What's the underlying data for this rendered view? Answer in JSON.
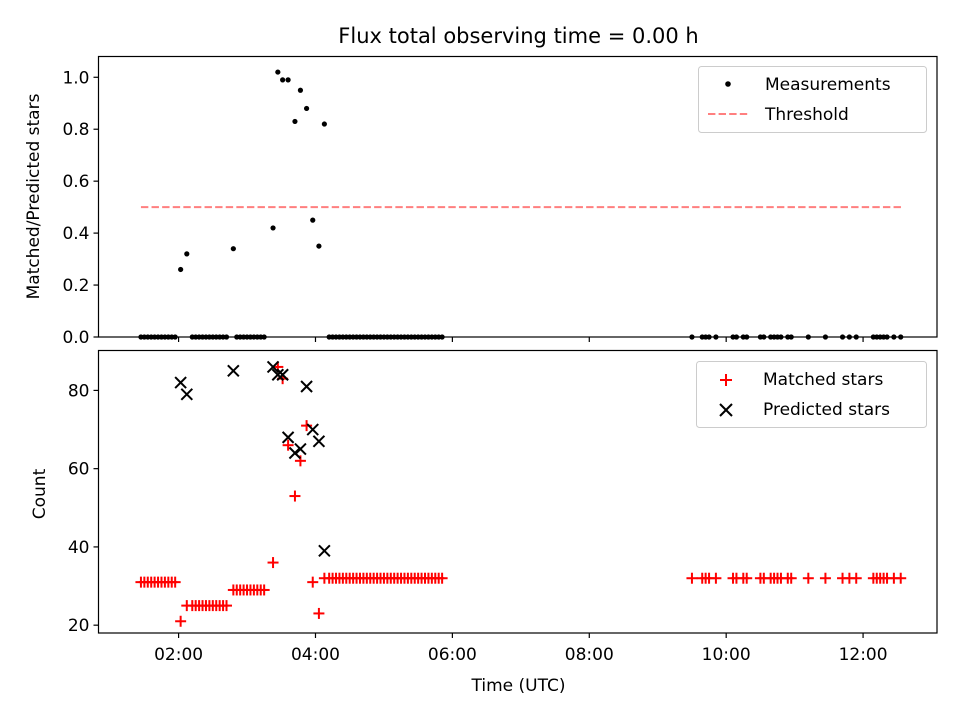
{
  "chart_data": {
    "type": "scatter",
    "title": "Flux total observing time = 0.00 h",
    "xlabel": "Time (UTC)",
    "x_unit": "hours UTC",
    "xlim": [
      0.83,
      13.08
    ],
    "x_ticks": [
      {
        "v": 2,
        "label": "02:00"
      },
      {
        "v": 4,
        "label": "04:00"
      },
      {
        "v": 6,
        "label": "06:00"
      },
      {
        "v": 8,
        "label": "08:00"
      },
      {
        "v": 10,
        "label": "10:00"
      },
      {
        "v": 12,
        "label": "12:00"
      }
    ],
    "panels": [
      {
        "ylabel": "Matched/Predicted stars",
        "ylim": [
          0,
          1.08
        ],
        "y_ticks": [
          {
            "v": 0,
            "label": "0.0"
          },
          {
            "v": 0.2,
            "label": "0.2"
          },
          {
            "v": 0.4,
            "label": "0.4"
          },
          {
            "v": 0.6,
            "label": "0.6"
          },
          {
            "v": 0.8,
            "label": "0.8"
          },
          {
            "v": 1.0,
            "label": "1.0"
          }
        ],
        "legend_position": "top-right",
        "series": [
          {
            "name": "Measurements",
            "kind": "dot",
            "color": "#000000",
            "x": [
              1.45,
              1.5,
              1.55,
              1.6,
              1.65,
              1.7,
              1.75,
              1.8,
              1.85,
              1.9,
              1.95,
              2.03,
              2.12,
              2.2,
              2.25,
              2.3,
              2.35,
              2.4,
              2.45,
              2.5,
              2.55,
              2.6,
              2.65,
              2.7,
              2.8,
              2.85,
              2.9,
              2.95,
              3.0,
              3.05,
              3.1,
              3.15,
              3.2,
              3.25,
              3.38,
              3.45,
              3.52,
              3.6,
              3.7,
              3.78,
              3.87,
              3.96,
              4.05,
              4.13,
              4.2,
              4.25,
              4.3,
              4.35,
              4.4,
              4.45,
              4.5,
              4.55,
              4.6,
              4.65,
              4.7,
              4.75,
              4.8,
              4.85,
              4.9,
              4.95,
              5.0,
              5.05,
              5.1,
              5.15,
              5.2,
              5.25,
              5.3,
              5.35,
              5.4,
              5.45,
              5.5,
              5.55,
              5.6,
              5.65,
              5.7,
              5.75,
              5.8,
              5.85,
              9.5,
              9.65,
              9.7,
              9.75,
              9.85,
              10.1,
              10.15,
              10.25,
              10.3,
              10.5,
              10.55,
              10.65,
              10.7,
              10.75,
              10.8,
              10.9,
              10.95,
              11.2,
              11.45,
              11.7,
              11.8,
              11.9,
              12.15,
              12.2,
              12.25,
              12.3,
              12.35,
              12.45,
              12.55
            ],
            "y": [
              0,
              0,
              0,
              0,
              0,
              0,
              0,
              0,
              0,
              0,
              0,
              0.26,
              0.32,
              0,
              0,
              0,
              0,
              0,
              0,
              0,
              0,
              0,
              0,
              0,
              0.34,
              0,
              0,
              0,
              0,
              0,
              0,
              0,
              0,
              0,
              0.42,
              1.02,
              0.99,
              0.99,
              0.83,
              0.95,
              0.88,
              0.45,
              0.35,
              0.82,
              0,
              0,
              0,
              0,
              0,
              0,
              0,
              0,
              0,
              0,
              0,
              0,
              0,
              0,
              0,
              0,
              0,
              0,
              0,
              0,
              0,
              0,
              0,
              0,
              0,
              0,
              0,
              0,
              0,
              0,
              0,
              0,
              0,
              0,
              0,
              0,
              0,
              0,
              0,
              0,
              0,
              0,
              0,
              0,
              0,
              0,
              0,
              0,
              0,
              0,
              0,
              0,
              0,
              0,
              0,
              0,
              0,
              0,
              0,
              0,
              0,
              0,
              0
            ]
          },
          {
            "name": "Threshold",
            "kind": "dashed-line",
            "color": "#ff7f7f",
            "x": [
              1.45,
              12.6
            ],
            "y": [
              0.5,
              0.5
            ]
          }
        ]
      },
      {
        "ylabel": "Count",
        "ylim": [
          18.0,
          90.2
        ],
        "y_ticks": [
          {
            "v": 20,
            "label": "20"
          },
          {
            "v": 40,
            "label": "40"
          },
          {
            "v": 60,
            "label": "60"
          },
          {
            "v": 80,
            "label": "80"
          }
        ],
        "legend_position": "top-right",
        "series": [
          {
            "name": "Matched stars",
            "kind": "plus",
            "color": "#ff0000",
            "x": [
              1.45,
              1.5,
              1.55,
              1.6,
              1.65,
              1.7,
              1.75,
              1.8,
              1.85,
              1.9,
              1.95,
              2.03,
              2.12,
              2.2,
              2.25,
              2.3,
              2.35,
              2.4,
              2.45,
              2.5,
              2.55,
              2.6,
              2.65,
              2.7,
              2.8,
              2.85,
              2.9,
              2.95,
              3.0,
              3.05,
              3.1,
              3.15,
              3.2,
              3.25,
              3.38,
              3.45,
              3.52,
              3.6,
              3.7,
              3.78,
              3.87,
              3.96,
              4.05,
              4.13,
              4.2,
              4.25,
              4.3,
              4.35,
              4.4,
              4.45,
              4.5,
              4.55,
              4.6,
              4.65,
              4.7,
              4.75,
              4.8,
              4.85,
              4.9,
              4.95,
              5.0,
              5.05,
              5.1,
              5.15,
              5.2,
              5.25,
              5.3,
              5.35,
              5.4,
              5.45,
              5.5,
              5.55,
              5.6,
              5.65,
              5.7,
              5.75,
              5.8,
              5.85,
              9.5,
              9.65,
              9.7,
              9.75,
              9.85,
              10.1,
              10.15,
              10.25,
              10.3,
              10.5,
              10.55,
              10.65,
              10.7,
              10.75,
              10.8,
              10.9,
              10.95,
              11.2,
              11.45,
              11.7,
              11.8,
              11.9,
              12.15,
              12.2,
              12.25,
              12.3,
              12.35,
              12.45,
              12.55
            ],
            "y": [
              31,
              31,
              31,
              31,
              31,
              31,
              31,
              31,
              31,
              31,
              31,
              21,
              25,
              25,
              25,
              25,
              25,
              25,
              25,
              25,
              25,
              25,
              25,
              25,
              29,
              29,
              29,
              29,
              29,
              29,
              29,
              29,
              29,
              29,
              36,
              86,
              83,
              66,
              53,
              62,
              71,
              31,
              23,
              32,
              32,
              32,
              32,
              32,
              32,
              32,
              32,
              32,
              32,
              32,
              32,
              32,
              32,
              32,
              32,
              32,
              32,
              32,
              32,
              32,
              32,
              32,
              32,
              32,
              32,
              32,
              32,
              32,
              32,
              32,
              32,
              32,
              32,
              32,
              32,
              32,
              32,
              32,
              32,
              32,
              32,
              32,
              32,
              32,
              32,
              32,
              32,
              32,
              32,
              32,
              32,
              32,
              32,
              32,
              32,
              32,
              32,
              32,
              32,
              32,
              32,
              32,
              32
            ]
          },
          {
            "name": "Predicted stars",
            "kind": "x",
            "color": "#000000",
            "x": [
              2.03,
              2.12,
              2.8,
              3.38,
              3.45,
              3.52,
              3.6,
              3.7,
              3.78,
              3.87,
              3.96,
              4.05,
              4.13
            ],
            "y": [
              82,
              79,
              85,
              86,
              84,
              84,
              68,
              64,
              65,
              81,
              70,
              67,
              39
            ]
          }
        ]
      }
    ]
  }
}
